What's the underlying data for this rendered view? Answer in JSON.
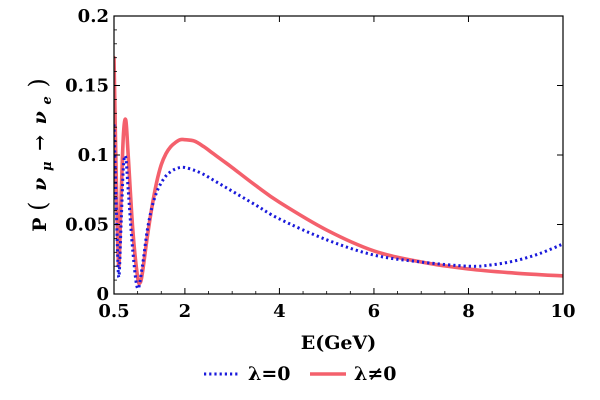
{
  "chart_data": {
    "type": "line",
    "title": "",
    "xlabel": "E(GeV)",
    "ylabel": "P(νμ → νe)",
    "ylabel_parts": {
      "prefix": "P",
      "nu": "ν",
      "sub_mu": "μ",
      "arrow": "→",
      "sub_e": "e"
    },
    "xlim": [
      0.5,
      10
    ],
    "ylim": [
      0,
      0.2
    ],
    "x_ticks": [
      0.5,
      2,
      4,
      6,
      8,
      10
    ],
    "x_tick_labels": [
      "0.5",
      "2",
      "4",
      "6",
      "8",
      "10"
    ],
    "y_ticks": [
      0,
      0.05,
      0.1,
      0.15,
      0.2
    ],
    "y_tick_labels": [
      "0",
      "0.05",
      "0.1",
      "0.15",
      "0.2"
    ],
    "grid": false,
    "legend_position": "bottom-center",
    "series": [
      {
        "name": "λ=0",
        "color": "#1a1adb",
        "style": "dotted",
        "x": [
          0.5,
          0.55,
          0.6,
          0.65,
          0.7,
          0.75,
          0.8,
          0.9,
          1.0,
          1.1,
          1.2,
          1.3,
          1.4,
          1.5,
          1.6,
          1.7,
          1.8,
          1.9,
          2.0,
          2.2,
          2.4,
          2.6,
          2.8,
          3.0,
          3.5,
          4.0,
          5.0,
          6.0,
          7.0,
          8.0,
          8.5,
          9.0,
          9.5,
          10.0
        ],
        "y": [
          0.122,
          0.06,
          0.012,
          0.05,
          0.092,
          0.098,
          0.075,
          0.03,
          0.004,
          0.02,
          0.045,
          0.062,
          0.073,
          0.08,
          0.085,
          0.088,
          0.09,
          0.091,
          0.091,
          0.089,
          0.086,
          0.082,
          0.078,
          0.074,
          0.064,
          0.054,
          0.039,
          0.028,
          0.023,
          0.02,
          0.021,
          0.024,
          0.029,
          0.036
        ]
      },
      {
        "name": "λ≠0",
        "color": "#f4606c",
        "style": "solid",
        "x": [
          0.5,
          0.55,
          0.6,
          0.65,
          0.7,
          0.75,
          0.8,
          0.9,
          1.0,
          1.05,
          1.1,
          1.2,
          1.3,
          1.4,
          1.5,
          1.6,
          1.7,
          1.8,
          1.9,
          2.0,
          2.2,
          2.4,
          2.6,
          2.8,
          3.0,
          3.5,
          4.0,
          5.0,
          6.0,
          7.0,
          8.0,
          9.0,
          10.0
        ],
        "y": [
          0.17,
          0.08,
          0.02,
          0.07,
          0.115,
          0.125,
          0.1,
          0.045,
          0.012,
          0.008,
          0.015,
          0.04,
          0.062,
          0.08,
          0.093,
          0.101,
          0.106,
          0.109,
          0.111,
          0.111,
          0.11,
          0.106,
          0.101,
          0.096,
          0.091,
          0.078,
          0.066,
          0.046,
          0.031,
          0.023,
          0.018,
          0.015,
          0.013
        ]
      }
    ]
  }
}
